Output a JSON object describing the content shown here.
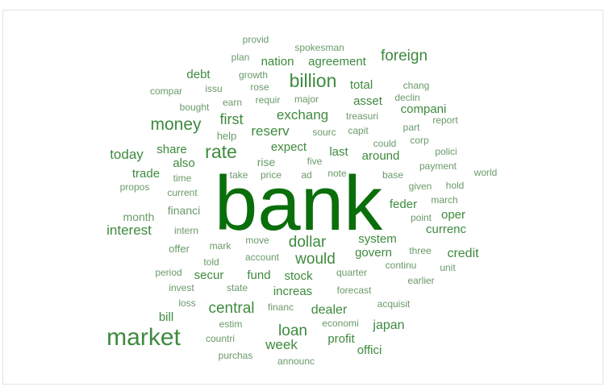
{
  "chart_data": {
    "type": "wordcloud",
    "palette": {
      "dark": "#0a6e0a",
      "medium": "#3e8a3e",
      "light": "#6a9a6a"
    },
    "words": [
      {
        "text": "bank",
        "weight": 100
      },
      {
        "text": "market",
        "weight": 28
      },
      {
        "text": "billion",
        "weight": 22
      },
      {
        "text": "rate",
        "weight": 22
      },
      {
        "text": "money",
        "weight": 20
      },
      {
        "text": "foreign",
        "weight": 18
      },
      {
        "text": "dollar",
        "weight": 18
      },
      {
        "text": "would",
        "weight": 18
      },
      {
        "text": "loan",
        "weight": 18
      },
      {
        "text": "central",
        "weight": 18
      },
      {
        "text": "first",
        "weight": 17
      },
      {
        "text": "exchang",
        "weight": 16
      },
      {
        "text": "reserv",
        "weight": 16
      },
      {
        "text": "today",
        "weight": 16
      },
      {
        "text": "interest",
        "weight": 16
      },
      {
        "text": "week",
        "weight": 16
      },
      {
        "text": "dealer",
        "weight": 15
      },
      {
        "text": "japan",
        "weight": 15
      },
      {
        "text": "credit",
        "weight": 15
      },
      {
        "text": "nation",
        "weight": 14
      },
      {
        "text": "agreement",
        "weight": 14
      },
      {
        "text": "debt",
        "weight": 14
      },
      {
        "text": "total",
        "weight": 14
      },
      {
        "text": "asset",
        "weight": 14
      },
      {
        "text": "compani",
        "weight": 14
      },
      {
        "text": "expect",
        "weight": 14
      },
      {
        "text": "last",
        "weight": 14
      },
      {
        "text": "share",
        "weight": 14
      },
      {
        "text": "trade",
        "weight": 14
      },
      {
        "text": "also",
        "weight": 14
      },
      {
        "text": "around",
        "weight": 14
      },
      {
        "text": "feder",
        "weight": 14
      },
      {
        "text": "oper",
        "weight": 14
      },
      {
        "text": "currenc",
        "weight": 14
      },
      {
        "text": "system",
        "weight": 14
      },
      {
        "text": "govern",
        "weight": 14
      },
      {
        "text": "fund",
        "weight": 14
      },
      {
        "text": "secur",
        "weight": 14
      },
      {
        "text": "stock",
        "weight": 14
      },
      {
        "text": "increas",
        "weight": 14
      },
      {
        "text": "bill",
        "weight": 14
      },
      {
        "text": "offici",
        "weight": 14
      },
      {
        "text": "profit",
        "weight": 14
      },
      {
        "text": "month",
        "weight": 13
      },
      {
        "text": "financi",
        "weight": 13
      },
      {
        "text": "rise",
        "weight": 13
      },
      {
        "text": "help",
        "weight": 12
      },
      {
        "text": "offer",
        "weight": 12
      },
      {
        "text": "provid",
        "weight": 11
      },
      {
        "text": "spokesman",
        "weight": 11
      },
      {
        "text": "plan",
        "weight": 11
      },
      {
        "text": "growth",
        "weight": 11
      },
      {
        "text": "compar",
        "weight": 11
      },
      {
        "text": "issu",
        "weight": 11
      },
      {
        "text": "rose",
        "weight": 11
      },
      {
        "text": "chang",
        "weight": 11
      },
      {
        "text": "major",
        "weight": 11
      },
      {
        "text": "earn",
        "weight": 11
      },
      {
        "text": "requir",
        "weight": 11
      },
      {
        "text": "declin",
        "weight": 11
      },
      {
        "text": "bought",
        "weight": 11
      },
      {
        "text": "treasuri",
        "weight": 11
      },
      {
        "text": "report",
        "weight": 11
      },
      {
        "text": "sourc",
        "weight": 11
      },
      {
        "text": "capit",
        "weight": 11
      },
      {
        "text": "part",
        "weight": 11
      },
      {
        "text": "could",
        "weight": 11
      },
      {
        "text": "corp",
        "weight": 11
      },
      {
        "text": "polici",
        "weight": 11
      },
      {
        "text": "five",
        "weight": 11
      },
      {
        "text": "payment",
        "weight": 11
      },
      {
        "text": "time",
        "weight": 11
      },
      {
        "text": "take",
        "weight": 11
      },
      {
        "text": "price",
        "weight": 11
      },
      {
        "text": "ad",
        "weight": 11
      },
      {
        "text": "note",
        "weight": 11
      },
      {
        "text": "base",
        "weight": 11
      },
      {
        "text": "world",
        "weight": 11
      },
      {
        "text": "propos",
        "weight": 11
      },
      {
        "text": "given",
        "weight": 11
      },
      {
        "text": "hold",
        "weight": 11
      },
      {
        "text": "current",
        "weight": 11
      },
      {
        "text": "march",
        "weight": 11
      },
      {
        "text": "point",
        "weight": 11
      },
      {
        "text": "intern",
        "weight": 11
      },
      {
        "text": "move",
        "weight": 11
      },
      {
        "text": "mark",
        "weight": 11
      },
      {
        "text": "three",
        "weight": 11
      },
      {
        "text": "account",
        "weight": 11
      },
      {
        "text": "told",
        "weight": 11
      },
      {
        "text": "unit",
        "weight": 11
      },
      {
        "text": "continu",
        "weight": 11
      },
      {
        "text": "period",
        "weight": 11
      },
      {
        "text": "quarter",
        "weight": 11
      },
      {
        "text": "earlier",
        "weight": 11
      },
      {
        "text": "invest",
        "weight": 11
      },
      {
        "text": "state",
        "weight": 11
      },
      {
        "text": "forecast",
        "weight": 11
      },
      {
        "text": "loss",
        "weight": 11
      },
      {
        "text": "financ",
        "weight": 11
      },
      {
        "text": "acquisit",
        "weight": 11
      },
      {
        "text": "estim",
        "weight": 11
      },
      {
        "text": "economi",
        "weight": 11
      },
      {
        "text": "countri",
        "weight": 11
      },
      {
        "text": "purchas",
        "weight": 11
      },
      {
        "text": "announc",
        "weight": 11
      }
    ]
  }
}
